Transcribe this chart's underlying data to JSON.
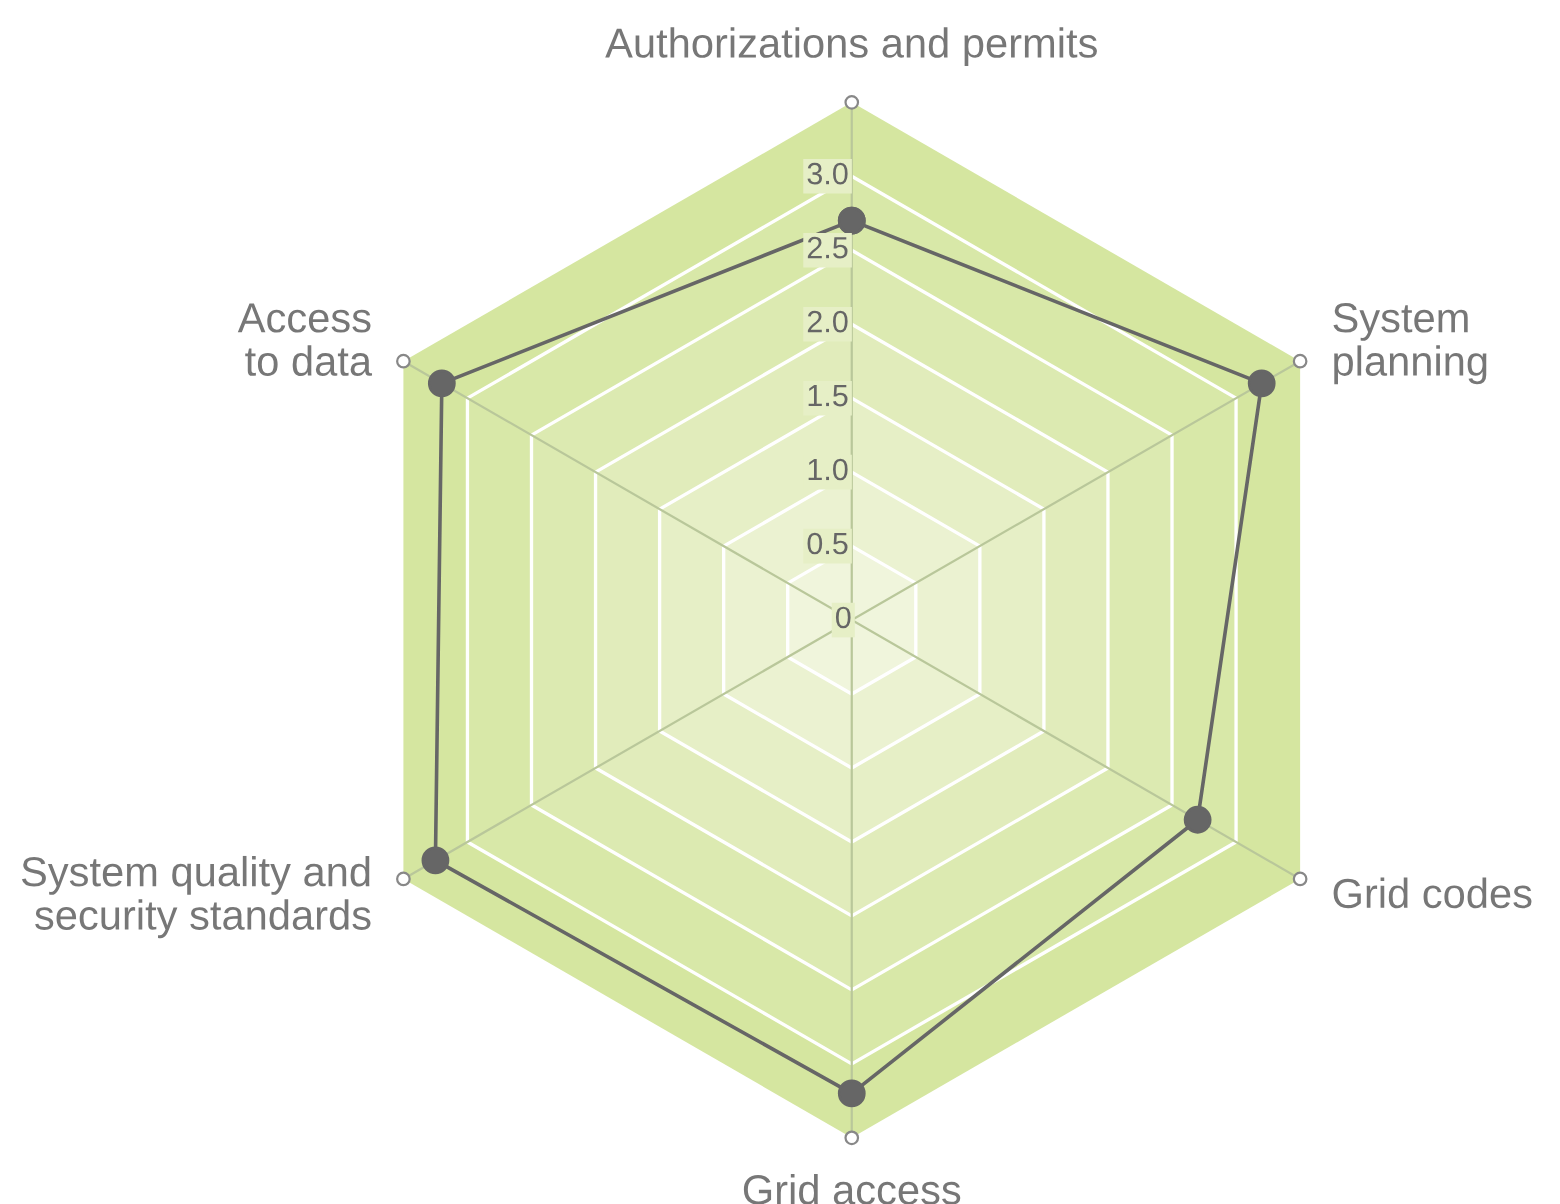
{
  "chart_data": {
    "type": "radar",
    "categories": [
      "Authorizations and permits",
      "System\nplanning",
      "Grid codes",
      "Grid access",
      "System quality and\nsecurity standards",
      "Access\nto data"
    ],
    "series": [
      {
        "color": "#666666",
        "values": [
          2.7,
          3.2,
          2.7,
          3.2,
          3.25,
          3.2
        ]
      }
    ],
    "ylim": [
      0,
      3.5
    ],
    "yticks": [
      0,
      0.5,
      {
        "value": 1,
        "label": "1.0"
      },
      1.5,
      {
        "value": 2,
        "label": "2.0"
      },
      2.5,
      {
        "value": 3,
        "label": "3.0"
      }
    ],
    "marker": "circle",
    "line_style": "solid",
    "grid": true,
    "legend": false
  }
}
